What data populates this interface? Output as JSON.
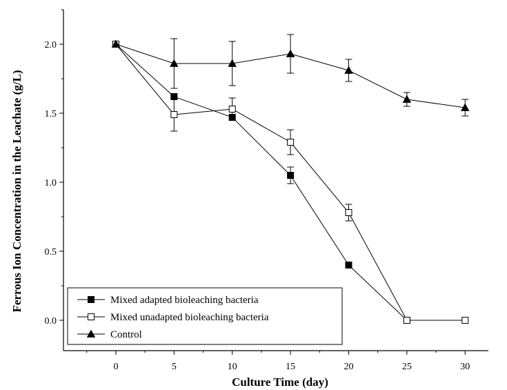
{
  "chart_data": {
    "type": "line",
    "xlabel": "Culture Time (day)",
    "ylabel": "Ferrous Ion Concentration in the Leachate (g/L)",
    "xlim": [
      -4.5,
      32
    ],
    "ylim": [
      -0.22,
      2.25
    ],
    "x_ticks": [
      0,
      5,
      10,
      15,
      20,
      25,
      30
    ],
    "x_tick_labels": [
      "0",
      "5",
      "10",
      "15",
      "20",
      "25",
      "30"
    ],
    "y_ticks": [
      0.0,
      0.5,
      1.0,
      1.5,
      2.0
    ],
    "y_tick_labels": [
      "0.0",
      "0.5",
      "1.0",
      "1.5",
      "2.0"
    ],
    "grid": false,
    "legend_position": "bottom-left",
    "series": [
      {
        "name": "Mixed adapted bioleaching bacteria",
        "marker": "filled-square",
        "color": "#000000",
        "x": [
          0,
          5,
          10,
          15,
          20,
          25
        ],
        "y": [
          2.0,
          1.62,
          1.47,
          1.05,
          0.4,
          0.0
        ],
        "err": [
          0.0,
          0.0,
          0.0,
          0.06,
          0.0,
          0.0
        ]
      },
      {
        "name": "Mixed unadapted bioleaching bacteria",
        "marker": "open-square",
        "color": "#000000",
        "x": [
          0,
          5,
          10,
          15,
          20,
          25,
          30
        ],
        "y": [
          2.0,
          1.49,
          1.53,
          1.29,
          0.78,
          0.0,
          0.0
        ],
        "err": [
          0.0,
          0.12,
          0.08,
          0.09,
          0.06,
          0.0,
          0.0
        ]
      },
      {
        "name": "Control",
        "marker": "filled-triangle",
        "color": "#000000",
        "x": [
          0,
          5,
          10,
          15,
          20,
          25,
          30
        ],
        "y": [
          2.0,
          1.86,
          1.86,
          1.93,
          1.81,
          1.6,
          1.54
        ],
        "err": [
          0.0,
          0.18,
          0.16,
          0.14,
          0.08,
          0.05,
          0.06
        ]
      }
    ]
  }
}
